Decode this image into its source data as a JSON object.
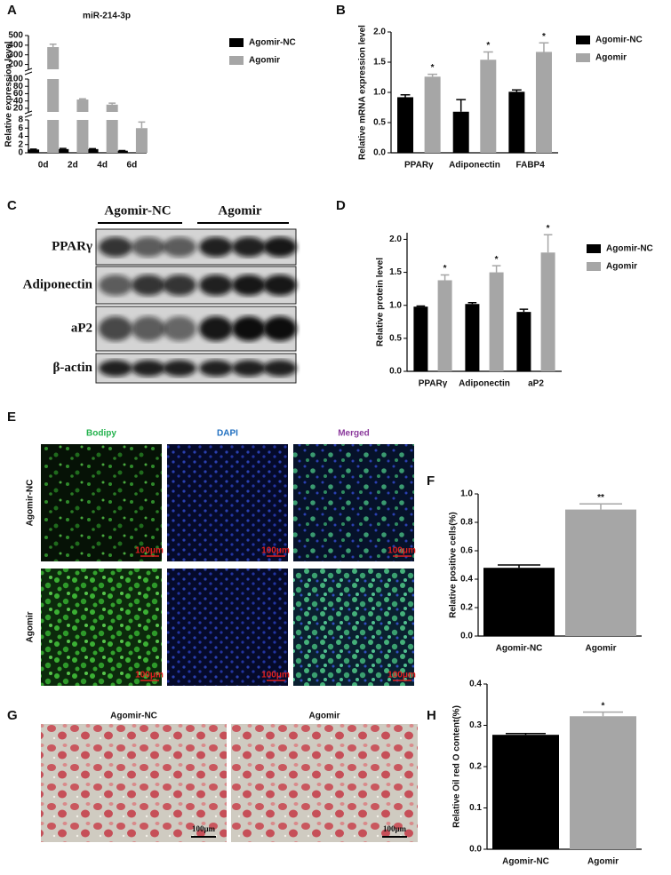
{
  "chart_data": [
    {
      "type": "bar",
      "panel": "A",
      "title": "miR-214-3p",
      "y_label": "Relative expression level",
      "categories": [
        "0d",
        "2d",
        "4d",
        "6d"
      ],
      "series": [
        {
          "name": "Agomir-NC",
          "color": "#000000",
          "values": [
            0.8,
            0.9,
            0.9,
            0.5
          ],
          "errors": [
            0.1,
            0.15,
            0.1,
            0.05
          ]
        },
        {
          "name": "Agomir",
          "color": "#a6a6a6",
          "values": [
            380,
            44,
            30,
            6
          ],
          "errors": [
            30,
            2,
            4,
            1.5
          ]
        }
      ],
      "y_axis": [
        {
          "ylim": [
            0,
            8
          ],
          "yticks": [
            0,
            2,
            4,
            6,
            8
          ]
        },
        {
          "ylim": [
            10,
            100
          ],
          "yticks": [
            20,
            40,
            60,
            80,
            100
          ]
        },
        {
          "ylim": [
            150,
            500
          ],
          "yticks": [
            200,
            300,
            400,
            500
          ]
        }
      ]
    },
    {
      "type": "bar",
      "panel": "B",
      "y_label": "Relative mRNA expression level",
      "categories": [
        "PPARγ",
        "Adiponectin",
        "FABP4"
      ],
      "series": [
        {
          "name": "Agomir-NC",
          "color": "#000000",
          "values": [
            0.92,
            0.68,
            1.01
          ],
          "errors": [
            0.04,
            0.2,
            0.03
          ]
        },
        {
          "name": "Agomir",
          "color": "#a6a6a6",
          "values": [
            1.26,
            1.54,
            1.67
          ],
          "errors": [
            0.04,
            0.13,
            0.15
          ],
          "marks": [
            "*",
            "*",
            "*"
          ]
        }
      ],
      "ylim": [
        0,
        2
      ],
      "yticks": [
        {
          "value": 0,
          "label": "0.0"
        },
        0.5,
        {
          "value": 1,
          "label": "1.0"
        },
        1.5,
        {
          "value": 2,
          "label": "2.0"
        }
      ]
    },
    {
      "type": "bar",
      "panel": "D",
      "y_label": "Relative protein level",
      "categories": [
        "PPARγ",
        "Adiponectin",
        "aP2"
      ],
      "series": [
        {
          "name": "Agomir-NC",
          "color": "#000000",
          "values": [
            0.98,
            1.02,
            0.9
          ],
          "errors": [
            0.01,
            0.02,
            0.04
          ]
        },
        {
          "name": "Agomir",
          "color": "#a6a6a6",
          "values": [
            1.38,
            1.5,
            1.8
          ],
          "errors": [
            0.08,
            0.1,
            0.27
          ],
          "marks": [
            "*",
            "*",
            "*"
          ]
        }
      ],
      "ylim": [
        0,
        2.1
      ],
      "yticks": [
        {
          "value": 0,
          "label": "0.0"
        },
        0.5,
        {
          "value": 1,
          "label": "1.0"
        },
        1.5,
        {
          "value": 2,
          "label": "2.0"
        }
      ]
    },
    {
      "type": "bar",
      "panel": "F",
      "y_label": "Relative positive cells(%)",
      "categories": [
        "Agomir-NC",
        "Agomir"
      ],
      "values": [
        0.48,
        0.89
      ],
      "errors": [
        0.02,
        0.04
      ],
      "colors": [
        "#000000",
        "#a6a6a6"
      ],
      "marks": [
        null,
        "**"
      ],
      "ylim": [
        0,
        1
      ],
      "yticks": [
        {
          "value": 0,
          "label": "0.0"
        },
        0.2,
        0.4,
        0.6,
        0.8,
        {
          "value": 1,
          "label": "1.0"
        }
      ]
    },
    {
      "type": "bar",
      "panel": "H",
      "y_label": "Relative Oil red O content(%)",
      "categories": [
        "Agomir-NC",
        "Agomir"
      ],
      "values": [
        0.277,
        0.322
      ],
      "errors": [
        0.003,
        0.01
      ],
      "colors": [
        "#000000",
        "#a6a6a6"
      ],
      "marks": [
        null,
        "*"
      ],
      "ylim": [
        0,
        0.4
      ],
      "yticks": [
        {
          "value": 0,
          "label": "0.0"
        },
        0.1,
        0.2,
        0.3,
        0.4
      ]
    }
  ],
  "blot": {
    "panel": "C",
    "groups": [
      "Agomir-NC",
      "Agomir"
    ],
    "rows": [
      "PPARγ",
      "Adiponectin",
      "aP2",
      "β-actin"
    ]
  },
  "staining": {
    "panel": "E",
    "columns": [
      "Bodipy",
      "DAPI",
      "Merged"
    ],
    "rows": [
      "Agomir-NC",
      "Agomir"
    ],
    "scale_bar": "100μm"
  },
  "oil_red": {
    "panel": "G",
    "columns": [
      "Agomir-NC",
      "Agomir"
    ],
    "scale_bar": "100μm"
  }
}
